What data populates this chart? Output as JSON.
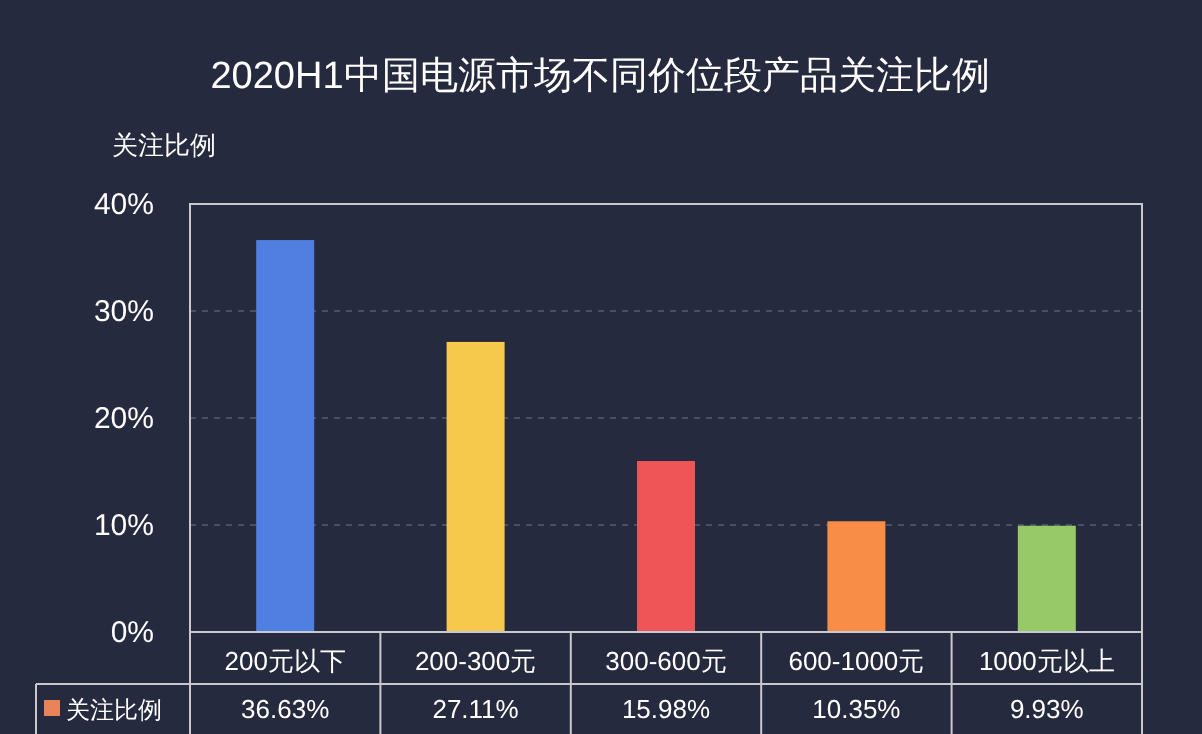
{
  "chart_data": {
    "type": "bar",
    "title": "2020H1中国电源市场不同价位段产品关注比例",
    "ylabel": "关注比例",
    "categories": [
      "200元以下",
      "200-300元",
      "300-600元",
      "600-1000元",
      "1000元以上"
    ],
    "series": [
      {
        "name": "关注比例",
        "color": "#e8845a",
        "colors": [
          "#4f7fe0",
          "#f6c94c",
          "#ef5456",
          "#f78d46",
          "#97c968"
        ],
        "values": [
          36.63,
          27.11,
          15.98,
          10.35,
          9.93
        ],
        "value_labels": [
          "36.63%",
          "27.11%",
          "15.98%",
          "10.35%",
          "9.93%"
        ]
      }
    ],
    "ylim": [
      0,
      40
    ],
    "yticks": [
      {
        "value": 0,
        "label": "0%"
      },
      {
        "value": 10,
        "label": "10%"
      },
      {
        "value": 20,
        "label": "20%"
      },
      {
        "value": 30,
        "label": "30%"
      },
      {
        "value": 40,
        "label": "40%"
      }
    ],
    "grid": "y"
  }
}
